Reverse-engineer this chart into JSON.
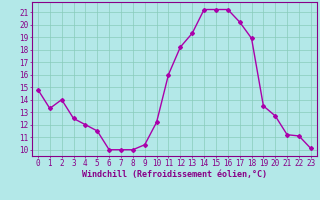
{
  "x": [
    0,
    1,
    2,
    3,
    4,
    5,
    6,
    7,
    8,
    9,
    10,
    11,
    12,
    13,
    14,
    15,
    16,
    17,
    18,
    19,
    20,
    21,
    22,
    23
  ],
  "y": [
    14.8,
    13.3,
    14.0,
    12.5,
    12.0,
    11.5,
    10.0,
    10.0,
    10.0,
    10.4,
    12.2,
    16.0,
    18.2,
    19.3,
    21.2,
    21.2,
    21.2,
    20.2,
    18.9,
    13.5,
    12.7,
    11.2,
    11.1,
    10.1
  ],
  "line_color": "#aa00aa",
  "marker": "D",
  "markersize": 2.0,
  "linewidth": 1.0,
  "bg_color": "#b3e8e8",
  "grid_color": "#88ccbb",
  "xlabel": "Windchill (Refroidissement éolien,°C)",
  "xlabel_fontsize": 6.0,
  "xtick_labels": [
    "0",
    "1",
    "2",
    "3",
    "4",
    "5",
    "6",
    "7",
    "8",
    "9",
    "10",
    "11",
    "12",
    "13",
    "14",
    "15",
    "16",
    "17",
    "18",
    "19",
    "20",
    "21",
    "22",
    "23"
  ],
  "ytick_labels": [
    "10",
    "11",
    "12",
    "13",
    "14",
    "15",
    "16",
    "17",
    "18",
    "19",
    "20",
    "21"
  ],
  "ylim": [
    9.5,
    21.8
  ],
  "xlim": [
    -0.5,
    23.5
  ],
  "tick_fontsize": 5.5,
  "label_color": "#880088"
}
